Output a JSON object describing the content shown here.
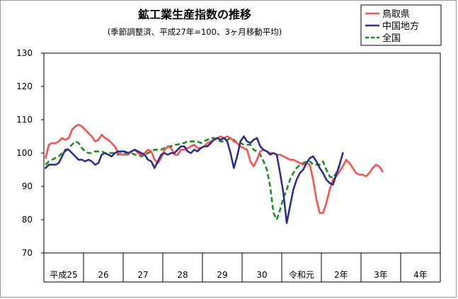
{
  "chart_data": {
    "type": "line",
    "title": "鉱工業生産指数の推移",
    "subtitle": "(季節調整済、平成27年=100、3ヶ月移動平均)",
    "ylim": [
      70,
      130
    ],
    "yticks": [
      70,
      80,
      90,
      100,
      110,
      120,
      130
    ],
    "grid": false,
    "legend_position": "top-right",
    "x_period_labels": [
      "平成25",
      "26",
      "27",
      "28",
      "29",
      "30",
      "令和元",
      "2年",
      "3年",
      "4年"
    ],
    "months_per_period": 12,
    "series": [
      {
        "name": "鳥取県",
        "color": "#ff5050",
        "dash": "solid",
        "values": [
          98.5,
          102.5,
          103.0,
          103.0,
          103.5,
          104.5,
          104.0,
          104.5,
          107.0,
          108.0,
          108.5,
          108.0,
          107.0,
          106.0,
          105.0,
          103.5,
          104.0,
          105.5,
          104.5,
          104.0,
          103.0,
          102.0,
          100.0,
          99.5,
          99.5,
          99.5,
          100.5,
          101.0,
          100.0,
          99.5,
          100.0,
          101.0,
          100.5,
          98.0,
          97.0,
          98.5,
          101.0,
          102.0,
          101.5,
          99.5,
          99.5,
          101.0,
          101.0,
          101.5,
          102.0,
          102.5,
          101.5,
          101.5,
          102.0,
          103.0,
          103.5,
          104.0,
          104.5,
          105.0,
          104.5,
          105.0,
          104.5,
          103.5,
          103.0,
          102.0,
          101.5,
          101.0,
          97.5,
          96.0,
          98.0,
          100.5,
          101.0,
          100.5,
          100.0,
          100.0,
          99.5,
          99.5,
          99.0,
          98.5,
          98.0,
          98.0,
          97.5,
          97.0,
          96.5,
          97.0,
          96.5,
          92.0,
          86.0,
          82.0,
          82.0,
          85.0,
          89.0,
          92.0,
          93.0,
          94.5,
          96.0,
          98.0,
          97.0,
          95.5,
          94.0,
          93.5,
          93.5,
          93.0,
          94.0,
          95.5,
          96.5,
          96.0,
          94.5
        ]
      },
      {
        "name": "中国地方",
        "color": "#2f2f8f",
        "dash": "solid",
        "values": [
          95.5,
          96.5,
          96.5,
          96.5,
          97.0,
          99.0,
          101.0,
          101.0,
          100.0,
          99.0,
          98.0,
          98.0,
          97.5,
          98.0,
          97.5,
          96.5,
          97.0,
          99.5,
          100.0,
          99.5,
          99.0,
          100.0,
          100.5,
          100.5,
          100.5,
          100.0,
          100.5,
          101.0,
          100.5,
          100.0,
          99.5,
          98.0,
          97.5,
          95.5,
          97.5,
          99.5,
          100.0,
          99.5,
          100.0,
          100.0,
          101.0,
          102.0,
          102.0,
          100.5,
          100.0,
          101.0,
          100.5,
          101.5,
          102.0,
          102.0,
          103.0,
          104.0,
          104.5,
          104.0,
          104.5,
          103.5,
          100.0,
          95.5,
          99.0,
          103.5,
          105.0,
          103.5,
          103.0,
          104.0,
          104.5,
          102.0,
          101.0,
          100.5,
          99.5,
          100.0,
          99.5,
          94.0,
          88.0,
          79.0,
          84.0,
          89.0,
          92.0,
          94.0,
          95.0,
          97.0,
          98.5,
          99.0,
          97.5,
          95.5,
          94.0,
          92.0,
          91.0,
          90.5,
          93.5,
          96.5,
          100.0
        ]
      },
      {
        "name": "全国",
        "color": "#1e8c1e",
        "dash": "dashed",
        "values": [
          96.5,
          97.5,
          98.0,
          98.5,
          99.0,
          100.0,
          100.5,
          101.5,
          102.5,
          103.5,
          103.0,
          101.5,
          100.5,
          100.0,
          100.0,
          100.5,
          100.5,
          100.5,
          100.0,
          100.0,
          100.0,
          100.0,
          99.5,
          100.0,
          100.0,
          100.0,
          100.0,
          99.5,
          99.5,
          99.0,
          99.5,
          100.0,
          100.5,
          101.0,
          101.0,
          101.0,
          101.5,
          102.0,
          102.0,
          102.5,
          102.5,
          103.0,
          103.0,
          103.5,
          103.5,
          103.5,
          103.5,
          103.0,
          103.5,
          104.0,
          104.5,
          104.5,
          104.0,
          103.5,
          103.5,
          104.0,
          104.5,
          104.0,
          103.0,
          103.0,
          102.5,
          102.5,
          102.5,
          101.0,
          100.5,
          99.5,
          97.5,
          95.0,
          90.0,
          82.0,
          80.0,
          83.0,
          86.5,
          89.0,
          92.0,
          94.0,
          95.5,
          96.5,
          97.0,
          97.5,
          97.5,
          96.5,
          96.5,
          96.5,
          97.5,
          95.0,
          93.0,
          92.5,
          94.0,
          96.0
        ]
      }
    ]
  }
}
